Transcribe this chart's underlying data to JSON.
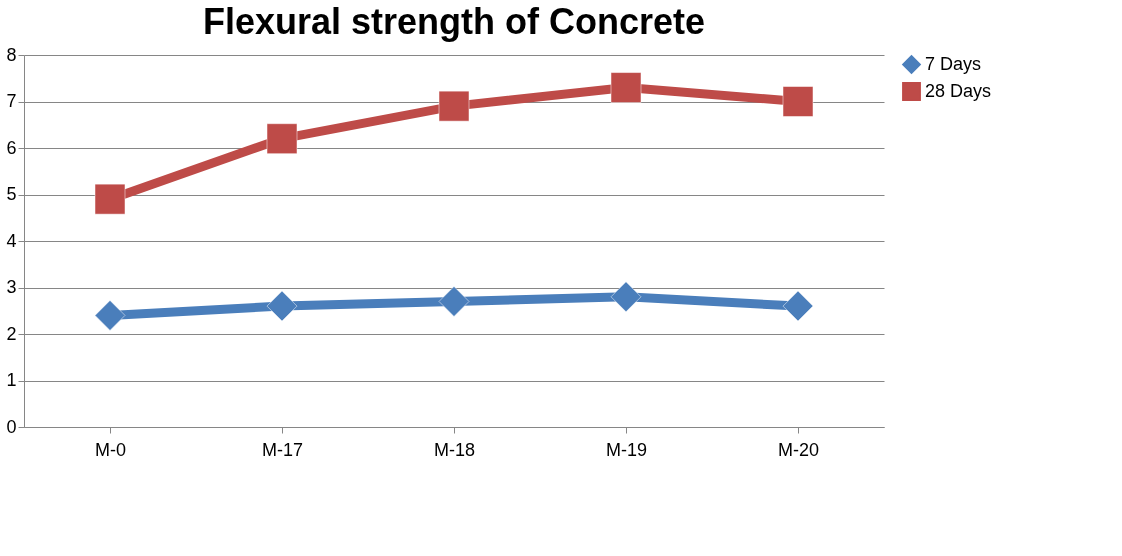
{
  "chart_data": {
    "type": "line",
    "title": "Flexural strength of Concrete",
    "categories": [
      "M-0",
      "M-17",
      "M-18",
      "M-19",
      "M-20"
    ],
    "series": [
      {
        "name": "7 Days",
        "color": "#4a7ebb",
        "marker": "diamond",
        "values": [
          2.4,
          2.6,
          2.7,
          2.8,
          2.6
        ]
      },
      {
        "name": "28 Days",
        "color": "#be4b48",
        "marker": "square",
        "values": [
          4.9,
          6.2,
          6.9,
          7.3,
          7.0
        ]
      }
    ],
    "ylim": [
      0,
      8
    ],
    "yticks": [
      0,
      1,
      2,
      3,
      4,
      5,
      6,
      7,
      8
    ],
    "grid": "y",
    "legend": "right"
  }
}
